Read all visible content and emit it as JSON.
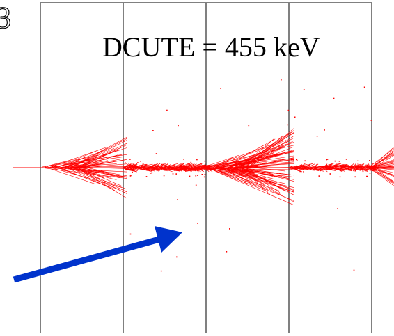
{
  "figure": {
    "panel_label": "3",
    "cut_label": "DCUTE = 455 keV",
    "colors": {
      "background": "#ffffff",
      "grid": "#000000",
      "track": "#ff0000",
      "arrow": "#0033cc"
    },
    "layer_count": 4,
    "icons": {
      "arrow": "incident-particle-arrow-icon"
    }
  }
}
